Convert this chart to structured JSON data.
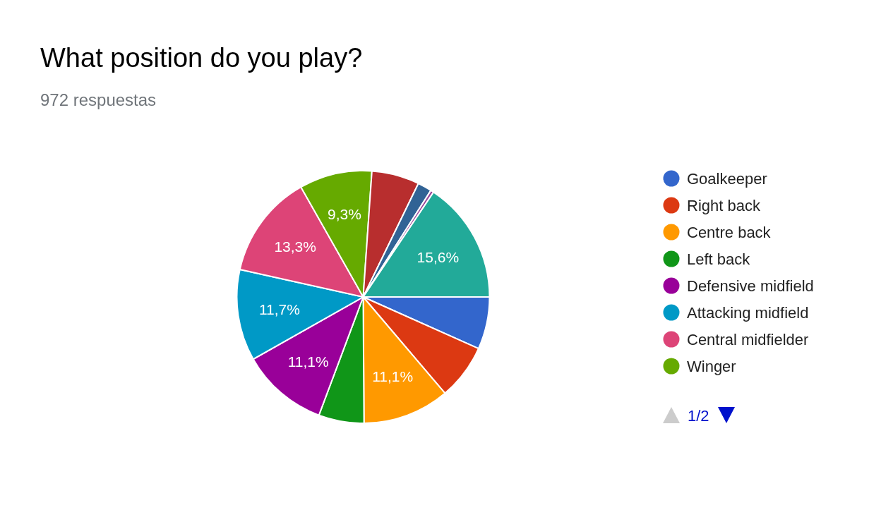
{
  "chart_data": {
    "type": "pie",
    "title": "What position do you play?",
    "subtitle": "972 respuestas",
    "categories": [
      "Goalkeeper",
      "Right back",
      "Centre back",
      "Left back",
      "Defensive midfield",
      "Attacking midfield",
      "Central midfielder",
      "Winger",
      null,
      null,
      null,
      null
    ],
    "values": [
      6.7,
      7.1,
      11.1,
      5.8,
      11.1,
      11.7,
      13.3,
      9.3,
      6.1,
      1.8,
      0.4,
      15.6
    ],
    "colors": [
      "#3366cc",
      "#dc3912",
      "#ff9900",
      "#109618",
      "#990099",
      "#0099c6",
      "#dd4477",
      "#66aa00",
      "#b82e2e",
      "#316395",
      "#994499",
      "#22aa99"
    ],
    "value_labels": [
      null,
      null,
      "11,1%",
      null,
      "11,1%",
      "11,7%",
      "13,3%",
      "9,3%",
      null,
      null,
      null,
      "15,6%"
    ],
    "legend": "right",
    "annotations": [
      "1/2"
    ]
  }
}
